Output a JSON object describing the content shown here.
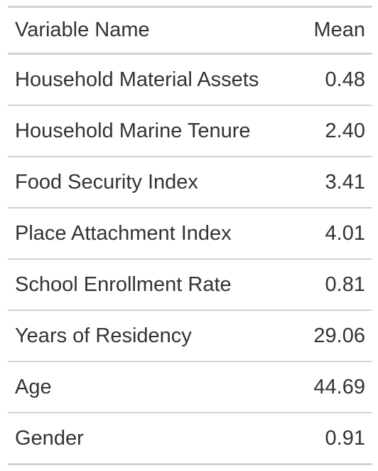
{
  "chart_data": {
    "type": "table",
    "columns": [
      "Variable Name",
      "Mean"
    ],
    "rows": [
      {
        "name": "Household Material Assets",
        "mean": "0.48"
      },
      {
        "name": "Household Marine Tenure",
        "mean": "2.40"
      },
      {
        "name": "Food Security Index",
        "mean": "3.41"
      },
      {
        "name": "Place Attachment Index",
        "mean": "4.01"
      },
      {
        "name": "School Enrollment Rate",
        "mean": "0.81"
      },
      {
        "name": "Years of Residency",
        "mean": "29.06"
      },
      {
        "name": "Age",
        "mean": "44.69"
      },
      {
        "name": "Gender",
        "mean": "0.91"
      }
    ]
  },
  "colors": {
    "text": "#333333",
    "rule": "#d3d3d3",
    "background": "#ffffff"
  }
}
